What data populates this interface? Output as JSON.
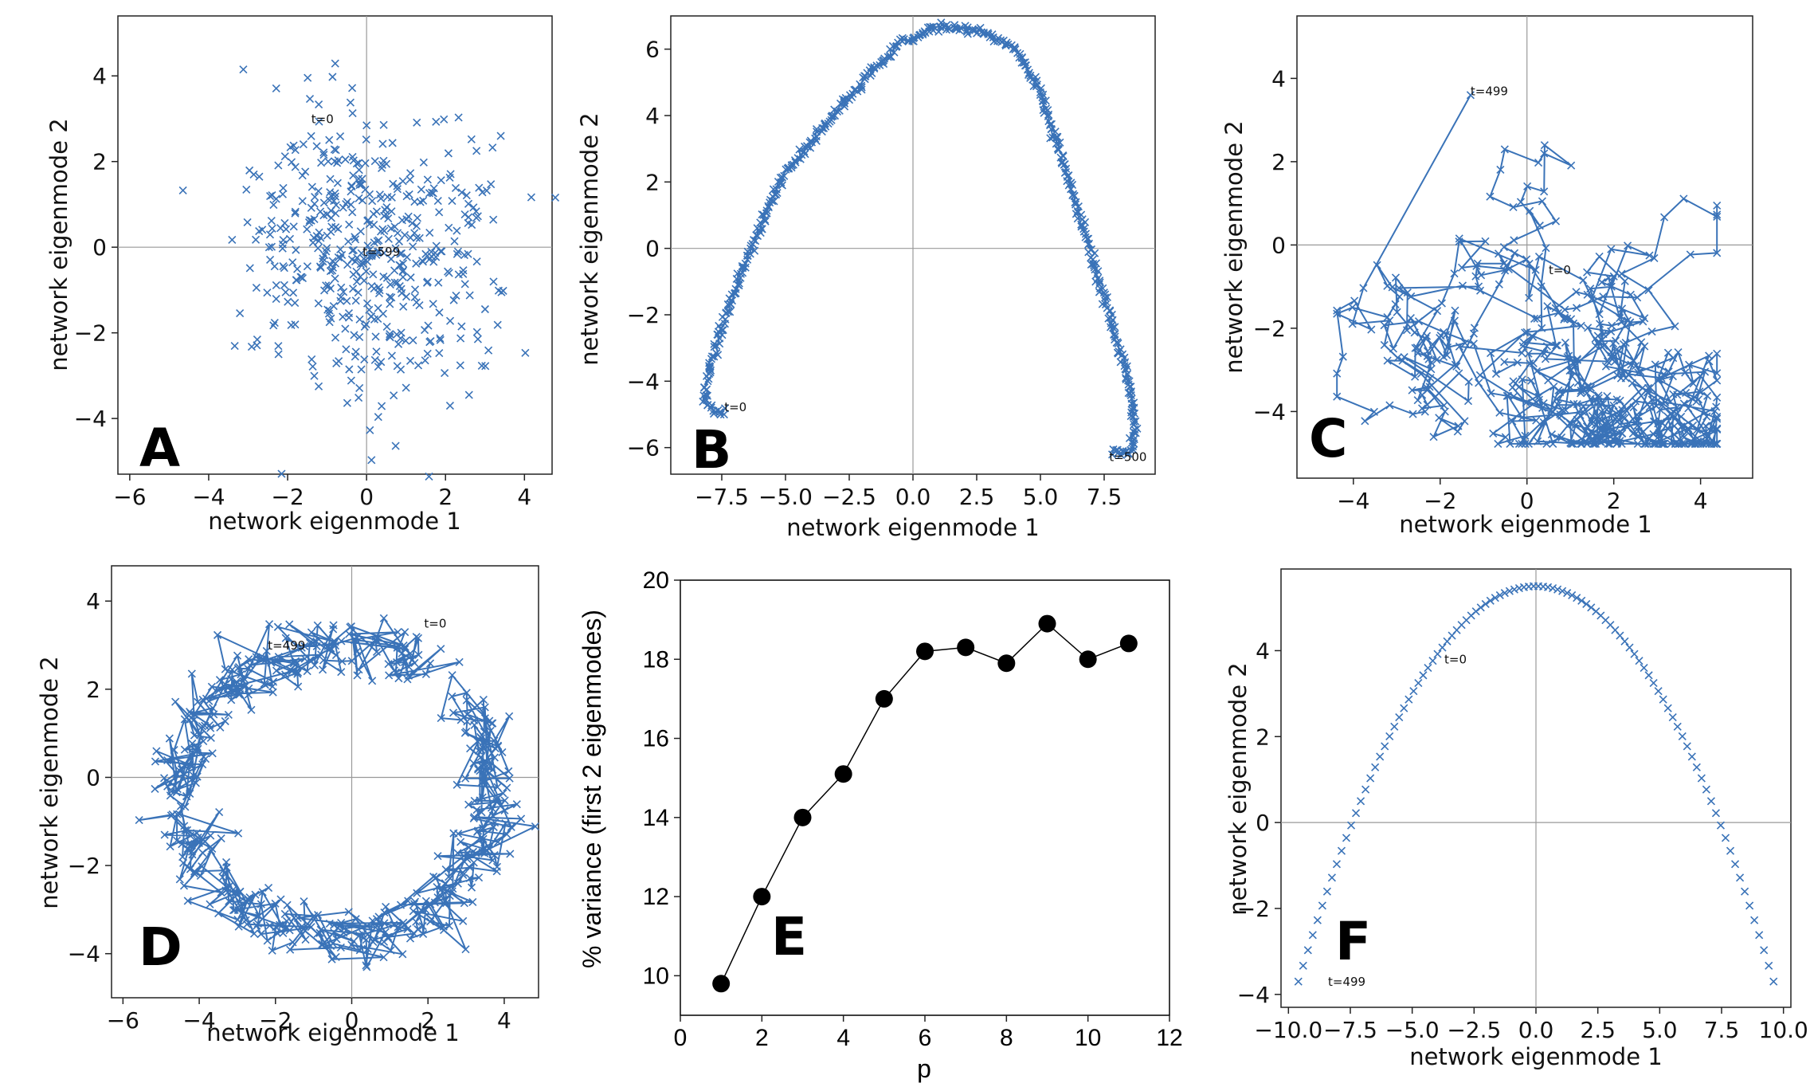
{
  "chart_data": [
    {
      "id": "A",
      "type": "scatter",
      "panel_letter": "A",
      "xlabel": "network eigenmode 1",
      "ylabel": "network eigenmode 2",
      "xlim": [
        -6.3,
        4.7
      ],
      "ylim": [
        -5.3,
        5.4
      ],
      "xticks": [
        -6,
        -4,
        -2,
        0,
        2,
        4
      ],
      "yticks": [
        -4,
        -2,
        0,
        2,
        4
      ],
      "tick_labels_x": [
        "−6",
        "−4",
        "−2",
        "0",
        "2",
        "4"
      ],
      "tick_labels_y": [
        "−4",
        "−2",
        "0",
        "2",
        "4"
      ],
      "zero_lines": true,
      "marker": "x",
      "connected": false,
      "color": "#3a73b8",
      "n_points": 500,
      "spread": 1.6,
      "annotations": [
        {
          "text": "t=0",
          "x": -1.4,
          "y": 2.9
        },
        {
          "text": "t=599",
          "x": -0.1,
          "y": -0.2
        }
      ]
    },
    {
      "id": "B",
      "type": "line",
      "panel_letter": "B",
      "xlabel": "network eigenmode 1",
      "ylabel": "network eigenmode 2",
      "xlim": [
        -9.5,
        9.5
      ],
      "ylim": [
        -6.8,
        7.0
      ],
      "xticks": [
        -7.5,
        -5.0,
        -2.5,
        0.0,
        2.5,
        5.0,
        7.5
      ],
      "yticks": [
        -6,
        -4,
        -2,
        0,
        2,
        4,
        6
      ],
      "tick_labels_x": [
        "−7.5",
        "−5.0",
        "−2.5",
        "0.0",
        "2.5",
        "5.0",
        "7.5"
      ],
      "tick_labels_y": [
        "−6",
        "−4",
        "−2",
        "0",
        "2",
        "4",
        "6"
      ],
      "zero_lines": true,
      "marker": "x",
      "connected": true,
      "color": "#3a73b8",
      "n_points": 500,
      "path": [
        [
          -7.4,
          -4.9
        ],
        [
          -7.8,
          -4.9
        ],
        [
          -8.2,
          -4.5
        ],
        [
          -8.0,
          -3.7
        ],
        [
          -7.6,
          -2.6
        ],
        [
          -7.0,
          -1.3
        ],
        [
          -6.2,
          0.3
        ],
        [
          -5.0,
          2.3
        ],
        [
          -3.6,
          3.6
        ],
        [
          -2.0,
          5.0
        ],
        [
          -0.5,
          6.2
        ],
        [
          1.2,
          6.7
        ],
        [
          2.8,
          6.5
        ],
        [
          4.0,
          6.0
        ],
        [
          5.0,
          4.7
        ],
        [
          5.8,
          2.8
        ],
        [
          6.6,
          0.8
        ],
        [
          7.5,
          -1.5
        ],
        [
          8.4,
          -3.8
        ],
        [
          8.7,
          -5.4
        ],
        [
          8.6,
          -6.1
        ],
        [
          7.8,
          -6.2
        ]
      ],
      "annotations": [
        {
          "text": "t=0",
          "x": -7.4,
          "y": -4.9
        },
        {
          "text": "t=500",
          "x": 7.7,
          "y": -6.4
        }
      ]
    },
    {
      "id": "C",
      "type": "line",
      "panel_letter": "C",
      "xlabel": "network eigenmode 1",
      "ylabel": "network eigenmode 2",
      "xlim": [
        -5.3,
        5.2
      ],
      "ylim": [
        -5.6,
        5.5
      ],
      "xticks": [
        -4,
        -2,
        0,
        2,
        4
      ],
      "yticks": [
        -4,
        -2,
        0,
        2,
        4
      ],
      "tick_labels_x": [
        "−4",
        "−2",
        "0",
        "2",
        "4"
      ],
      "tick_labels_y": [
        "−4",
        "−2",
        "0",
        "2",
        "4"
      ],
      "zero_lines": true,
      "marker": "x",
      "connected": true,
      "color": "#3a73b8",
      "n_points": 500,
      "annotations": [
        {
          "text": "t=0",
          "x": 0.5,
          "y": -0.7
        },
        {
          "text": "t=499",
          "x": -1.3,
          "y": 3.6
        }
      ]
    },
    {
      "id": "D",
      "type": "line",
      "panel_letter": "D",
      "xlabel": "network eigenmode 1",
      "ylabel": "network eigenmode 2",
      "xlim": [
        -6.3,
        4.9
      ],
      "ylim": [
        -5.0,
        4.8
      ],
      "xticks": [
        -6,
        -4,
        -2,
        0,
        2,
        4
      ],
      "yticks": [
        -4,
        -2,
        0,
        2,
        4
      ],
      "tick_labels_x": [
        "−6",
        "−4",
        "−2",
        "0",
        "2",
        "4"
      ],
      "tick_labels_y": [
        "−4",
        "−2",
        "0",
        "2",
        "4"
      ],
      "zero_lines": true,
      "marker": "x",
      "connected": true,
      "color": "#3a73b8",
      "n_points": 500,
      "ring_center": [
        -0.3,
        -0.3
      ],
      "ring_radius": [
        4.1,
        3.3
      ],
      "annotations": [
        {
          "text": "t=0",
          "x": 1.9,
          "y": 3.4
        },
        {
          "text": "t=499",
          "x": -2.2,
          "y": 2.9
        }
      ]
    },
    {
      "id": "E",
      "type": "line",
      "panel_letter": "E",
      "xlabel": "p",
      "ylabel": "% variance (first 2 eigenmodes)",
      "xlim": [
        0,
        12
      ],
      "ylim": [
        9,
        20
      ],
      "xticks": [
        0,
        2,
        4,
        6,
        8,
        10,
        12
      ],
      "yticks": [
        10,
        12,
        14,
        16,
        18,
        20
      ],
      "tick_labels_x": [
        "0",
        "2",
        "4",
        "6",
        "8",
        "10",
        "12"
      ],
      "tick_labels_y": [
        "10",
        "12",
        "14",
        "16",
        "18",
        "20"
      ],
      "x": [
        1,
        2,
        3,
        4,
        5,
        6,
        7,
        8,
        9,
        10,
        11
      ],
      "y": [
        9.8,
        12.0,
        14.0,
        15.1,
        17.0,
        18.2,
        18.3,
        17.9,
        18.9,
        18.0,
        18.4
      ],
      "color": "#000000"
    },
    {
      "id": "F",
      "type": "scatter",
      "panel_letter": "F",
      "xlabel": "network eigenmode 1",
      "ylabel": "network eigenmode 2",
      "xlim": [
        -10.3,
        10.3
      ],
      "ylim": [
        -4.3,
        5.9
      ],
      "xticks": [
        -10.0,
        -7.5,
        -5.0,
        -2.5,
        0.0,
        2.5,
        5.0,
        7.5,
        10.0
      ],
      "yticks": [
        -4,
        -2,
        0,
        2,
        4
      ],
      "tick_labels_x": [
        "−10.0",
        "−7.5",
        "−5.0",
        "−2.5",
        "0.0",
        "2.5",
        "5.0",
        "7.5",
        "10.0"
      ],
      "tick_labels_y": [
        "−4",
        "−2",
        "0",
        "2",
        "4"
      ],
      "zero_lines": true,
      "marker": "x",
      "connected": false,
      "color": "#3a73b8",
      "n_points": 100,
      "curve": {
        "peak": 5.5,
        "x_start": -9.6,
        "x_end": 9.6,
        "y_end": -3.7
      },
      "annotations": [
        {
          "text": "t=0",
          "x": -3.7,
          "y": 3.7
        },
        {
          "text": "t=499",
          "x": -8.4,
          "y": -3.8
        }
      ]
    }
  ]
}
